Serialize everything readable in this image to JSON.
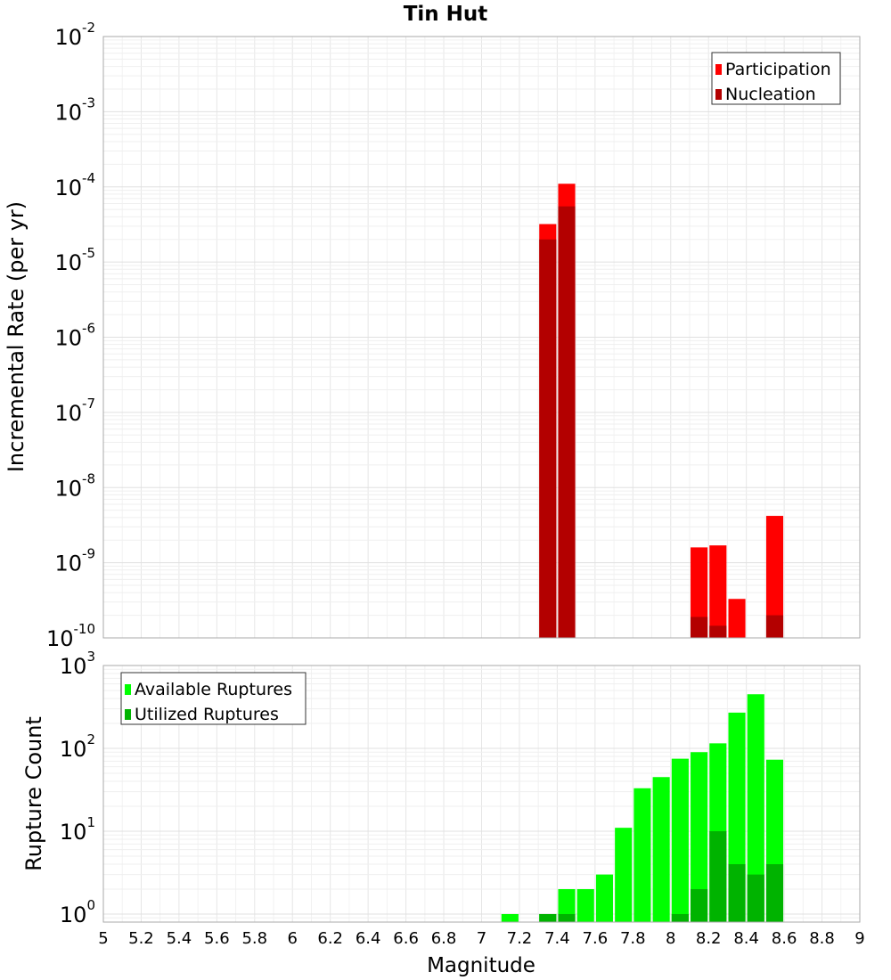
{
  "chart_data": [
    {
      "type": "bar",
      "title": "Tin Hut",
      "ylabel": "Incremental Rate (per yr)",
      "xlabel": "",
      "y_scale": "log",
      "ylim": [
        1e-10,
        0.01
      ],
      "xlim": [
        5,
        9
      ],
      "y_tick_exponents": [
        "-2",
        "-3",
        "-4",
        "-5",
        "-6",
        "-7",
        "-8",
        "-9",
        "-10"
      ],
      "grid": true,
      "legend_position": "top-right",
      "bar_width": 0.09,
      "series": [
        {
          "name": "Participation",
          "color": "#ff0000",
          "x": [
            7.35,
            7.45,
            8.15,
            8.25,
            8.35,
            8.55
          ],
          "values": [
            3.2e-05,
            0.00011,
            1.6e-09,
            1.7e-09,
            3.3e-10,
            4.2e-09
          ]
        },
        {
          "name": "Nucleation",
          "color": "#b30000",
          "x": [
            7.35,
            7.45,
            8.15,
            8.25,
            8.55
          ],
          "values": [
            2e-05,
            5.5e-05,
            1.9e-10,
            1.45e-10,
            2e-10
          ]
        }
      ]
    },
    {
      "type": "bar",
      "title": "",
      "ylabel": "Rupture Count",
      "xlabel": "Magnitude",
      "y_scale": "log",
      "ylim": [
        0.8,
        1000
      ],
      "xlim": [
        5,
        9
      ],
      "x_ticks": [
        "5",
        "5.2",
        "5.4",
        "5.6",
        "5.8",
        "6",
        "6.2",
        "6.4",
        "6.6",
        "6.8",
        "7",
        "7.2",
        "7.4",
        "7.6",
        "7.8",
        "8",
        "8.2",
        "8.4",
        "8.6",
        "8.8",
        "9"
      ],
      "y_tick_exponents": [
        "3",
        "2",
        "1",
        "0"
      ],
      "grid": true,
      "legend_position": "top-left",
      "bar_width": 0.09,
      "series": [
        {
          "name": "Available Ruptures",
          "color": "#00ff00",
          "x": [
            7.15,
            7.35,
            7.45,
            7.55,
            7.65,
            7.75,
            7.85,
            7.95,
            8.05,
            8.15,
            8.25,
            8.35,
            8.45,
            8.55
          ],
          "values": [
            1,
            1,
            2,
            2,
            3,
            11,
            33,
            45,
            75,
            90,
            115,
            270,
            450,
            73
          ]
        },
        {
          "name": "Utilized Ruptures",
          "color": "#00b300",
          "x": [
            7.35,
            7.45,
            8.05,
            8.15,
            8.25,
            8.35,
            8.45,
            8.55
          ],
          "values": [
            1,
            1,
            1,
            2,
            10,
            4,
            3,
            4
          ]
        }
      ]
    }
  ]
}
